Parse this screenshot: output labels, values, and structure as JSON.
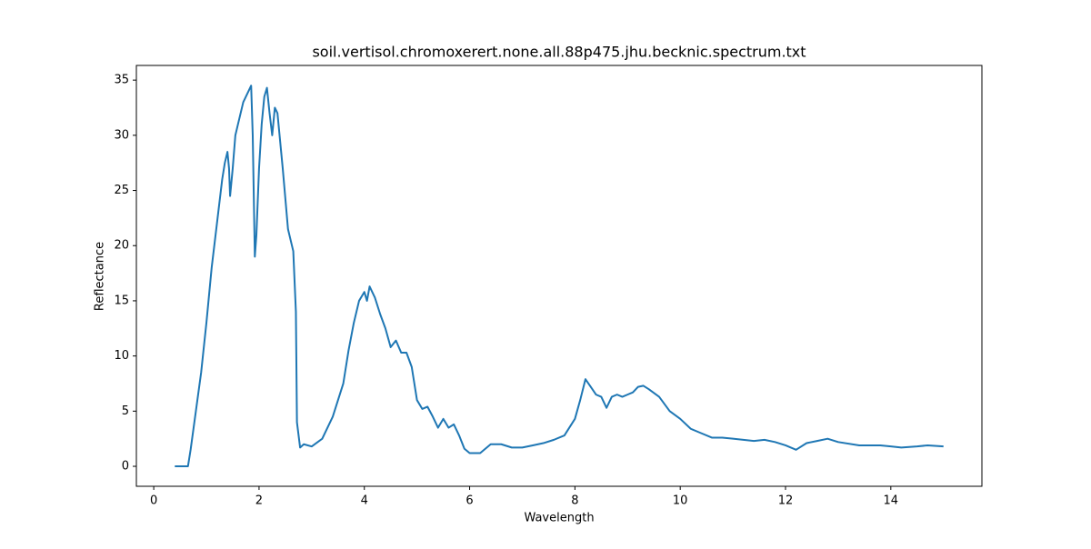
{
  "chart_data": {
    "type": "line",
    "title": "soil.vertisol.chromoxerert.none.all.88p475.jhu.becknic.spectrum.txt",
    "xlabel": "Wavelength",
    "ylabel": "Reflectance",
    "x": [
      0.4,
      0.65,
      0.7,
      0.8,
      0.9,
      1.0,
      1.1,
      1.2,
      1.3,
      1.35,
      1.4,
      1.43,
      1.45,
      1.5,
      1.55,
      1.6,
      1.7,
      1.8,
      1.85,
      1.88,
      1.92,
      1.95,
      2.0,
      2.05,
      2.1,
      2.15,
      2.2,
      2.25,
      2.3,
      2.35,
      2.45,
      2.55,
      2.65,
      2.7,
      2.72,
      2.78,
      2.85,
      3.0,
      3.2,
      3.4,
      3.6,
      3.7,
      3.8,
      3.9,
      4.0,
      4.05,
      4.1,
      4.2,
      4.3,
      4.4,
      4.5,
      4.6,
      4.7,
      4.8,
      4.9,
      5.0,
      5.1,
      5.2,
      5.3,
      5.4,
      5.5,
      5.6,
      5.7,
      5.8,
      5.9,
      6.0,
      6.2,
      6.4,
      6.6,
      6.8,
      7.0,
      7.2,
      7.4,
      7.6,
      7.8,
      8.0,
      8.1,
      8.2,
      8.3,
      8.4,
      8.5,
      8.6,
      8.7,
      8.8,
      8.9,
      9.0,
      9.1,
      9.2,
      9.3,
      9.4,
      9.6,
      9.8,
      10.0,
      10.2,
      10.4,
      10.6,
      10.8,
      11.0,
      11.4,
      11.6,
      11.8,
      12.0,
      12.2,
      12.4,
      12.6,
      12.8,
      13.0,
      13.4,
      13.8,
      14.0,
      14.2,
      14.5,
      14.7,
      15.0
    ],
    "series": [
      {
        "color": "#1f77b4",
        "values": [
          0,
          0,
          1.5,
          5,
          8.5,
          13,
          18,
          22,
          26,
          27.5,
          28.5,
          27,
          24.5,
          27,
          30,
          31,
          33,
          34,
          34.5,
          30,
          19,
          21,
          27,
          31,
          33.5,
          34.3,
          32,
          30,
          32.5,
          32,
          27,
          21.5,
          19.5,
          14,
          4,
          1.7,
          2,
          1.8,
          2.5,
          4.5,
          7.5,
          10.5,
          13,
          15,
          15.8,
          15,
          16.3,
          15.3,
          13.8,
          12.5,
          10.8,
          11.4,
          10.3,
          10.3,
          9,
          6,
          5.2,
          5.4,
          4.5,
          3.5,
          4.3,
          3.5,
          3.8,
          2.8,
          1.6,
          1.2,
          1.2,
          2,
          2,
          1.7,
          1.7,
          1.9,
          2.1,
          2.4,
          2.8,
          4.3,
          6,
          7.9,
          7.2,
          6.5,
          6.3,
          5.3,
          6.3,
          6.5,
          6.3,
          6.5,
          6.7,
          7.2,
          7.3,
          7,
          6.3,
          5,
          4.3,
          3.4,
          3.0,
          2.6,
          2.6,
          2.5,
          2.3,
          2.4,
          2.2,
          1.9,
          1.5,
          2.1,
          2.3,
          2.5,
          2.2,
          1.9,
          1.9,
          1.8,
          1.7,
          1.8,
          1.9,
          1.8
        ]
      }
    ],
    "xlim": [
      -0.33,
      15.73
    ],
    "ylim": [
      -1.81,
      36.33
    ],
    "xticks": [
      0,
      2,
      4,
      6,
      8,
      10,
      12,
      14
    ],
    "yticks": [
      0,
      5,
      10,
      15,
      20,
      25,
      30,
      35
    ]
  }
}
